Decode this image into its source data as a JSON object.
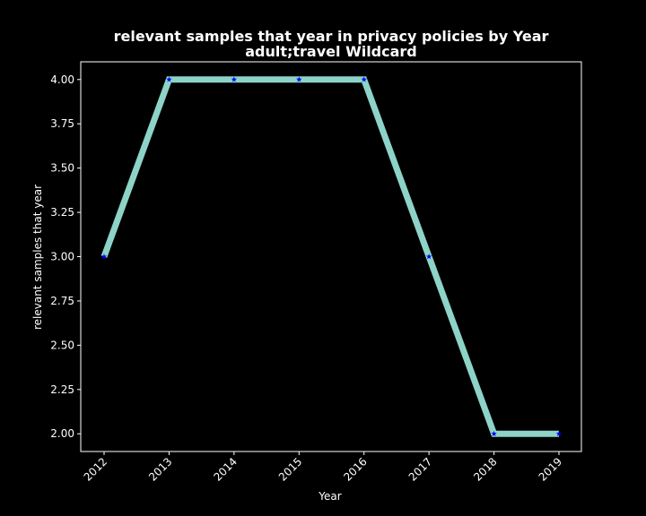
{
  "chart_data": {
    "type": "line",
    "title": "relevant samples that year in privacy policies by Year",
    "subtitle": "adult;travel Wildcard",
    "xlabel": "Year",
    "ylabel": "relevant samples that year",
    "x": [
      "2012",
      "2013",
      "2014",
      "2015",
      "2016",
      "2017",
      "2018",
      "2019"
    ],
    "series": [
      {
        "values": [
          3,
          4,
          4,
          4,
          4,
          3,
          2,
          2
        ]
      }
    ],
    "ylim": [
      1.9,
      4.1
    ],
    "yticks": [
      "2.00",
      "2.25",
      "2.50",
      "2.75",
      "3.00",
      "3.25",
      "3.50",
      "3.75",
      "4.00"
    ],
    "grid": false,
    "legend": "none",
    "colors": {
      "background": "#000000",
      "line": "#8dd3c7",
      "marker": "#0000ff",
      "axes": "#ffffff",
      "text": "#ffffff"
    }
  }
}
